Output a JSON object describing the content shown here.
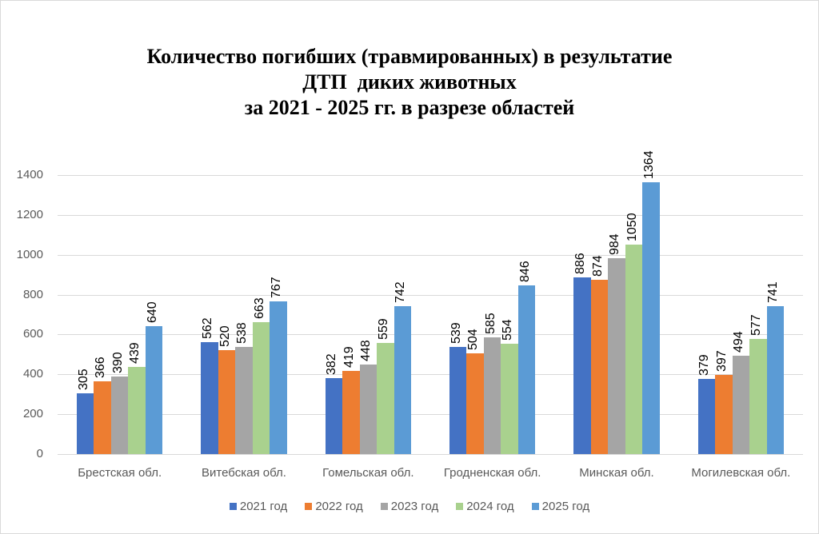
{
  "chart_data": {
    "type": "bar",
    "title": "Количество погибших (травмированных) в результатие ДТП  диких животных за 2021 - 2025 гг. в разрезе областей",
    "title_lines": [
      "Количество погибших (травмированных) в результатие",
      "ДТП  диких животных",
      "за 2021 - 2025 гг. в разрезе областей"
    ],
    "xlabel": "",
    "ylabel": "",
    "ylim": [
      0,
      1400
    ],
    "yticks": [
      "0",
      "200",
      "400",
      "600",
      "800",
      "1000",
      "1200",
      "1400"
    ],
    "grid": true,
    "legend_position": "bottom",
    "categories": [
      "Брестская обл.",
      "Витебская обл.",
      "Гомельская обл.",
      "Гродненская обл.",
      "Минская обл.",
      "Могилевская обл."
    ],
    "series": [
      {
        "name": "2021 год",
        "color": "#4472c4",
        "values": [
          305,
          562,
          382,
          539,
          886,
          379
        ]
      },
      {
        "name": "2022 год",
        "color": "#ed7d31",
        "values": [
          366,
          520,
          419,
          504,
          874,
          397
        ]
      },
      {
        "name": "2023 год",
        "color": "#a5a5a5",
        "values": [
          390,
          538,
          448,
          585,
          984,
          494
        ]
      },
      {
        "name": "2024 год",
        "color": "#a9d18e",
        "values": [
          439,
          663,
          559,
          554,
          1050,
          577
        ]
      },
      {
        "name": "2025 год",
        "color": "#5b9bd5",
        "values": [
          640,
          767,
          742,
          846,
          1364,
          741
        ]
      }
    ]
  }
}
